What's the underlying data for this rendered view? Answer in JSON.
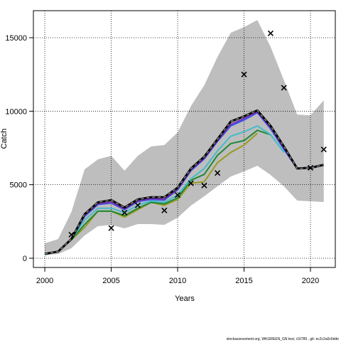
{
  "chart_data": {
    "type": "line",
    "x_label": "Years",
    "y_label": "Catch",
    "footer": "stockassessment.org, WKGREEN_GN test, r16785 , git: ec2c2a0c6dde",
    "x": [
      2000,
      2001,
      2002,
      2003,
      2004,
      2005,
      2006,
      2007,
      2008,
      2009,
      2010,
      2011,
      2012,
      2013,
      2014,
      2015,
      2016,
      2017,
      2018,
      2019,
      2020,
      2021
    ],
    "band": {
      "color": "#bebebe",
      "upper": [
        1016,
        1300,
        3145,
        6050,
        6725,
        6970,
        5950,
        6970,
        7600,
        7700,
        8560,
        10350,
        11760,
        13690,
        15340,
        15720,
        16200,
        14370,
        12100,
        9770,
        9720,
        10740
      ],
      "lower": [
        200,
        290,
        680,
        1550,
        2180,
        2270,
        2030,
        2320,
        2320,
        2270,
        2760,
        3580,
        4210,
        4890,
        5560,
        5900,
        6290,
        5660,
        4890,
        3920,
        3870,
        3820
      ]
    },
    "series": [
      {
        "color": "#999922",
        "values": [
          250,
          450,
          1250,
          2100,
          3200,
          3200,
          2800,
          3300,
          3800,
          3600,
          4000,
          5100,
          5200,
          6500,
          7200,
          7700,
          8500,
          null,
          null,
          null,
          null,
          null
        ]
      },
      {
        "color": "#228833",
        "values": [
          250,
          450,
          1250,
          2300,
          3200,
          3200,
          2900,
          3400,
          3800,
          3700,
          4100,
          5300,
          5700,
          7000,
          7800,
          8000,
          8700,
          8400,
          null,
          null,
          null,
          null
        ]
      },
      {
        "color": "#44bbcc",
        "values": [
          260,
          450,
          1280,
          2600,
          3400,
          3400,
          3100,
          3600,
          3900,
          3800,
          4300,
          5400,
          6100,
          7300,
          8300,
          8600,
          9000,
          8400,
          7200,
          null,
          null,
          null
        ]
      },
      {
        "color": "#3355ee",
        "values": [
          280,
          450,
          1300,
          2850,
          3650,
          3750,
          3300,
          3850,
          4000,
          3950,
          4650,
          5950,
          6750,
          7950,
          9000,
          9400,
          9900,
          8800,
          7400,
          6100,
          null,
          null
        ]
      },
      {
        "color": "#7733bb",
        "values": [
          290,
          450,
          1300,
          2900,
          3700,
          3800,
          3350,
          3900,
          4050,
          4000,
          4700,
          6000,
          6800,
          8000,
          9100,
          9500,
          9950,
          8900,
          7500,
          6100,
          6200,
          null
        ]
      },
      {
        "color": "#000000",
        "values": [
          300,
          450,
          1300,
          3000,
          3800,
          3950,
          3450,
          4000,
          4150,
          4150,
          4800,
          6100,
          6900,
          8100,
          9300,
          9650,
          10050,
          9000,
          7600,
          6100,
          6150,
          6350
        ]
      }
    ],
    "observed": {
      "color": "#000000",
      "x": [
        2002,
        2005,
        2006,
        2007,
        2009,
        2010,
        2011,
        2012,
        2013,
        2015,
        2017,
        2018,
        2020,
        2021
      ],
      "values": [
        1600,
        2050,
        3100,
        3600,
        3250,
        4300,
        5100,
        4950,
        5800,
        12500,
        15300,
        11600,
        6150,
        7400
      ]
    },
    "xlim": [
      1999.14,
      2021.87
    ],
    "ylim": [
      -629,
      16838
    ],
    "xticks": [
      2000,
      2005,
      2010,
      2015,
      2020
    ],
    "yticks": [
      0,
      5000,
      10000,
      15000
    ],
    "grid": true
  }
}
